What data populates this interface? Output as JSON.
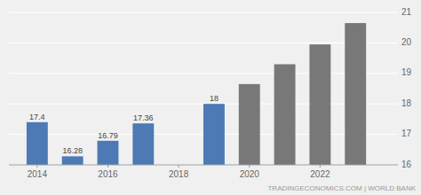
{
  "chart_data": {
    "type": "bar",
    "x": [
      2014,
      2015,
      2016,
      2017,
      2019,
      2020,
      2021,
      2022,
      2023
    ],
    "values": [
      17.4,
      16.28,
      16.79,
      17.36,
      18.0,
      18.65,
      19.3,
      19.95,
      20.65
    ],
    "colors": [
      "#4d7ab5",
      "#4d7ab5",
      "#4d7ab5",
      "#4d7ab5",
      "#4d7ab5",
      "#787878",
      "#787878",
      "#787878",
      "#787878"
    ],
    "data_labels": true,
    "value_labels": [
      "17.4",
      "16.28",
      "16.79",
      "17.36",
      "18",
      null,
      null,
      null,
      null
    ],
    "xlim": [
      2013.2,
      2024.2
    ],
    "xticks": [
      2014,
      2016,
      2018,
      2020,
      2022
    ],
    "ylim": [
      16,
      21
    ],
    "yticks": [
      16,
      17,
      18,
      19,
      20,
      21
    ],
    "grid": true,
    "annotations": [
      "TRADINGECONOMICS.COM | WORLD BANK"
    ]
  }
}
